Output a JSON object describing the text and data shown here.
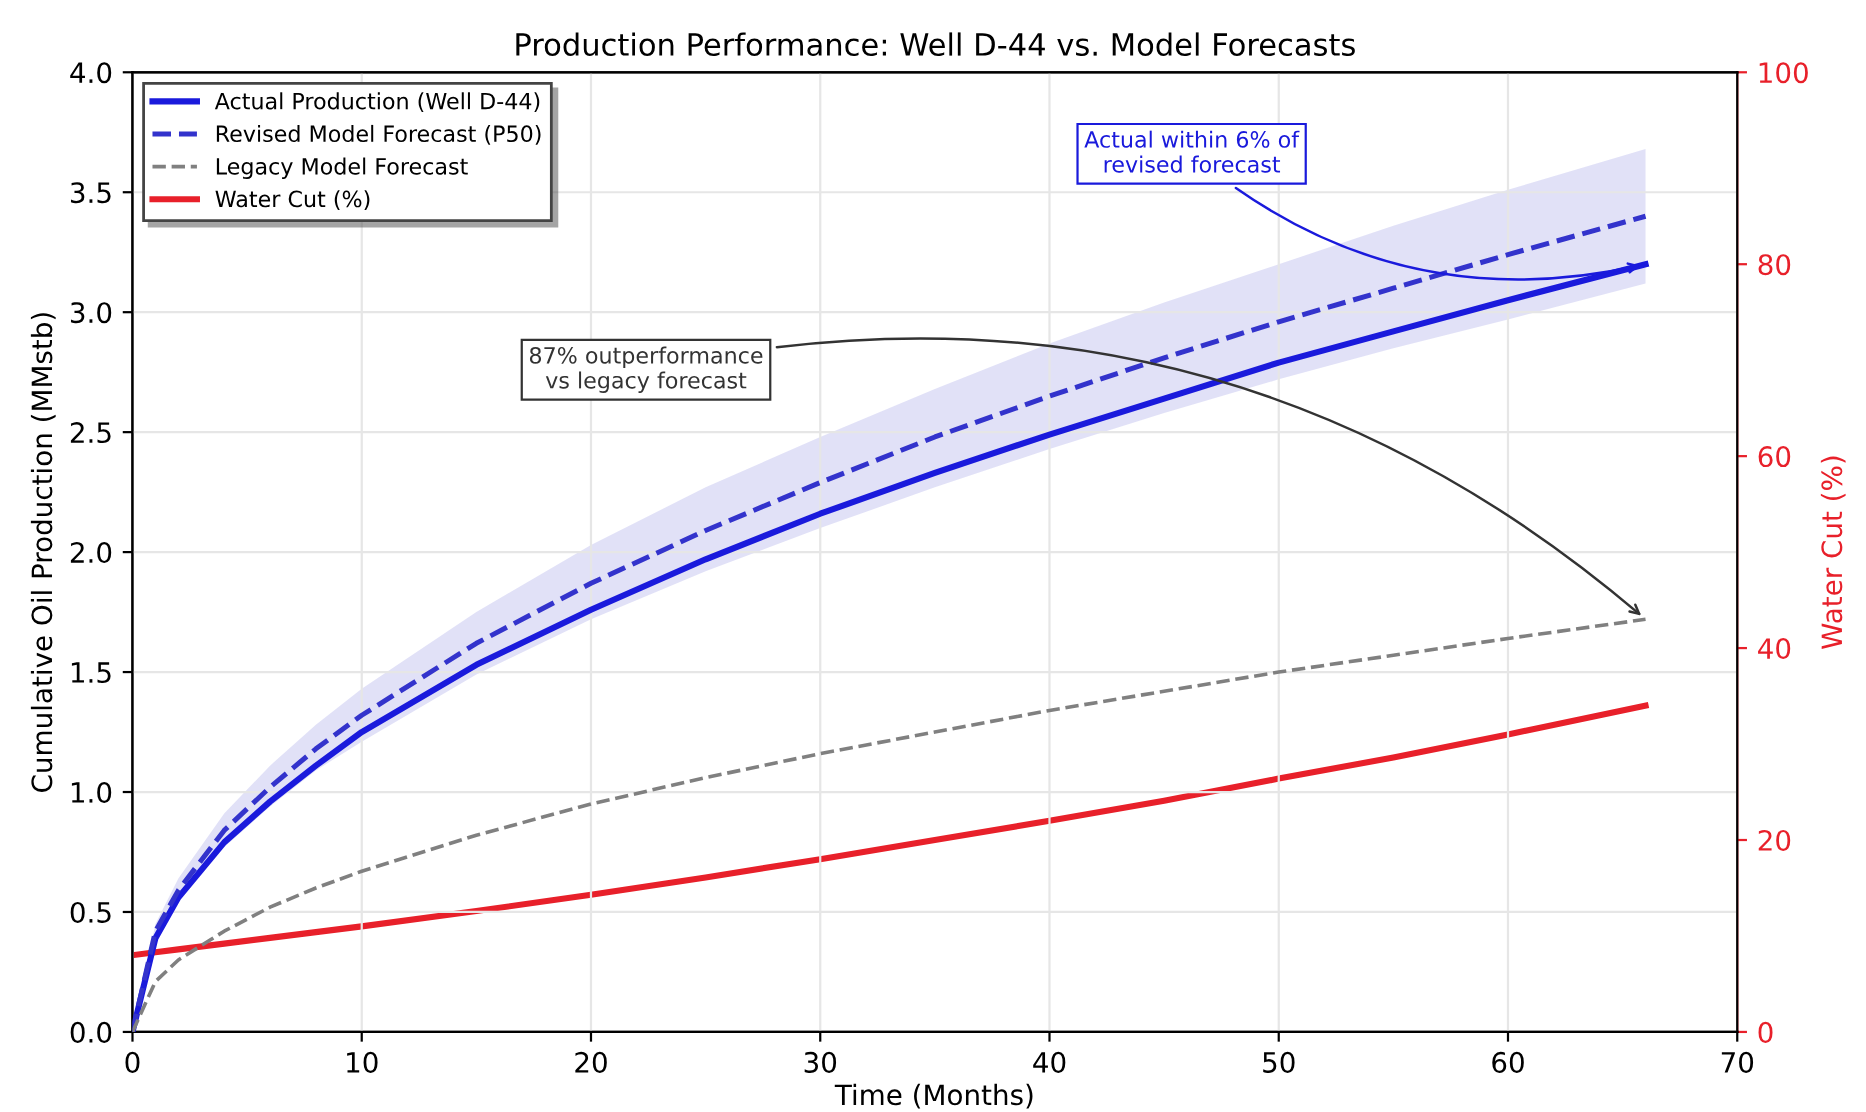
{
  "chart_data": {
    "type": "line",
    "title": "Production Performance: Well D-44 vs. Model Forecasts",
    "xlabel": "Time (Months)",
    "ylabel": "Cumulative Oil Production (MMstb)",
    "y2label": "Water Cut (%)",
    "x": [
      0,
      1,
      2,
      4,
      6,
      8,
      10,
      15,
      20,
      25,
      30,
      35,
      40,
      45,
      50,
      55,
      60,
      66
    ],
    "series": [
      {
        "name": "Actual Production (Well D-44)",
        "color": "#1a1adc",
        "line_style": "solid",
        "values": [
          0,
          0.39,
          0.56,
          0.79,
          0.96,
          1.11,
          1.25,
          1.53,
          1.76,
          1.97,
          2.16,
          2.33,
          2.49,
          2.64,
          2.79,
          2.92,
          3.05,
          3.2
        ]
      },
      {
        "name": "Revised Model Forecast (P50)",
        "color": "#3333cc",
        "line_style": "dashed",
        "values": [
          0,
          0.42,
          0.59,
          0.84,
          1.02,
          1.18,
          1.32,
          1.62,
          1.87,
          2.09,
          2.29,
          2.48,
          2.65,
          2.81,
          2.96,
          3.1,
          3.24,
          3.4
        ],
        "lower": [
          0,
          0.38,
          0.54,
          0.77,
          0.94,
          1.09,
          1.21,
          1.49,
          1.72,
          1.92,
          2.1,
          2.27,
          2.43,
          2.58,
          2.72,
          2.85,
          2.97,
          3.12
        ],
        "upper": [
          0,
          0.45,
          0.64,
          0.91,
          1.11,
          1.28,
          1.43,
          1.75,
          2.03,
          2.27,
          2.48,
          2.68,
          2.87,
          3.04,
          3.2,
          3.36,
          3.51,
          3.68
        ]
      },
      {
        "name": "Legacy Model Forecast",
        "color": "#808080",
        "line_style": "dashed",
        "values": [
          0,
          0.21,
          0.3,
          0.42,
          0.52,
          0.6,
          0.67,
          0.82,
          0.95,
          1.06,
          1.16,
          1.25,
          1.34,
          1.42,
          1.5,
          1.57,
          1.64,
          1.72
        ]
      },
      {
        "name": "Water Cut (%)",
        "color": "#e8202a",
        "line_style": "solid",
        "axis": "y2",
        "values": [
          8,
          8.3,
          8.6,
          9.2,
          9.8,
          10.4,
          11.0,
          12.6,
          14.3,
          16.1,
          18.0,
          20.0,
          22.0,
          24.1,
          26.4,
          28.6,
          31.0,
          34.0
        ]
      }
    ],
    "xlim": [
      0,
      70
    ],
    "xticks": [
      0,
      10,
      20,
      30,
      40,
      50,
      60,
      70
    ],
    "ylim": [
      0,
      4.0
    ],
    "yticks": [
      {
        "value": 0,
        "label": "0.0"
      },
      0.5,
      {
        "value": 1,
        "label": "1.0"
      },
      1.5,
      {
        "value": 2,
        "label": "2.0"
      },
      2.5,
      {
        "value": 3,
        "label": "3.0"
      },
      3.5,
      {
        "value": 4,
        "label": "4.0"
      }
    ],
    "y2lim": [
      0,
      100
    ],
    "y2ticks": [
      0,
      20,
      40,
      60,
      80,
      100
    ],
    "annotations": [
      {
        "text": "Actual within 6% of\nrevised forecast",
        "x": 66,
        "y": 3.2
      },
      {
        "text": "87% outperformance\nvs legacy forecast",
        "x": 66,
        "y": 1.72
      }
    ],
    "grid": true,
    "legend": "top left",
    "marker": "none"
  }
}
